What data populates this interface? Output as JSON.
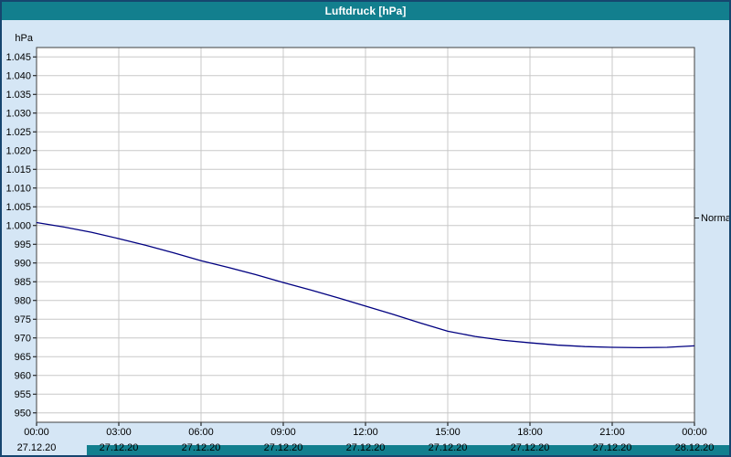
{
  "window": {
    "title": "Luftdruck [hPa]"
  },
  "colors": {
    "titlebar_bg": "#127f8e",
    "window_bg": "#d5e6f5",
    "window_border": "#16466f",
    "plot_bg": "#ffffff",
    "grid": "#c8c8c8",
    "axis": "#404040",
    "tick": "#000000",
    "line": "#000080",
    "bottom_bar": "#127f8e"
  },
  "chart_data": {
    "type": "line",
    "title": "Luftdruck [hPa]",
    "xlabel": "",
    "ylabel": "hPa",
    "ylim": [
      947.5,
      1047.5
    ],
    "xlim": [
      0,
      24
    ],
    "grid": true,
    "legend_position": "none",
    "y_ticks": [
      950,
      955,
      960,
      965,
      970,
      975,
      980,
      985,
      990,
      995,
      1000,
      1005,
      1010,
      1015,
      1020,
      1025,
      1030,
      1035,
      1040,
      1045
    ],
    "y_tick_labels": [
      "950",
      "955",
      "960",
      "965",
      "970",
      "975",
      "980",
      "985",
      "990",
      "995",
      "1.000",
      "1.005",
      "1.010",
      "1.015",
      "1.020",
      "1.025",
      "1.030",
      "1.035",
      "1.040",
      "1.045"
    ],
    "x_ticks": [
      0,
      3,
      6,
      9,
      12,
      15,
      18,
      21,
      24
    ],
    "x_tick_times": [
      "00:00",
      "03:00",
      "06:00",
      "09:00",
      "12:00",
      "15:00",
      "18:00",
      "21:00",
      "00:00"
    ],
    "x_tick_dates": [
      "27.12.20",
      "27.12.20",
      "27.12.20",
      "27.12.20",
      "27.12.20",
      "27.12.20",
      "27.12.20",
      "27.12.20",
      "28.12.20"
    ],
    "annotations": [
      {
        "label": "Normal",
        "value": 1002
      }
    ],
    "series": [
      {
        "name": "Luftdruck",
        "color": "#000080",
        "x": [
          0,
          1,
          2,
          3,
          4,
          5,
          6,
          7,
          8,
          9,
          10,
          11,
          12,
          13,
          14,
          15,
          16,
          17,
          18,
          19,
          20,
          21,
          22,
          23,
          24
        ],
        "values": [
          1000.8,
          999.6,
          998.2,
          996.5,
          994.7,
          992.7,
          990.6,
          988.8,
          986.9,
          984.8,
          982.8,
          980.7,
          978.5,
          976.3,
          974.0,
          971.8,
          970.4,
          969.4,
          968.7,
          968.1,
          967.7,
          967.5,
          967.4,
          967.5,
          967.9
        ]
      }
    ]
  }
}
